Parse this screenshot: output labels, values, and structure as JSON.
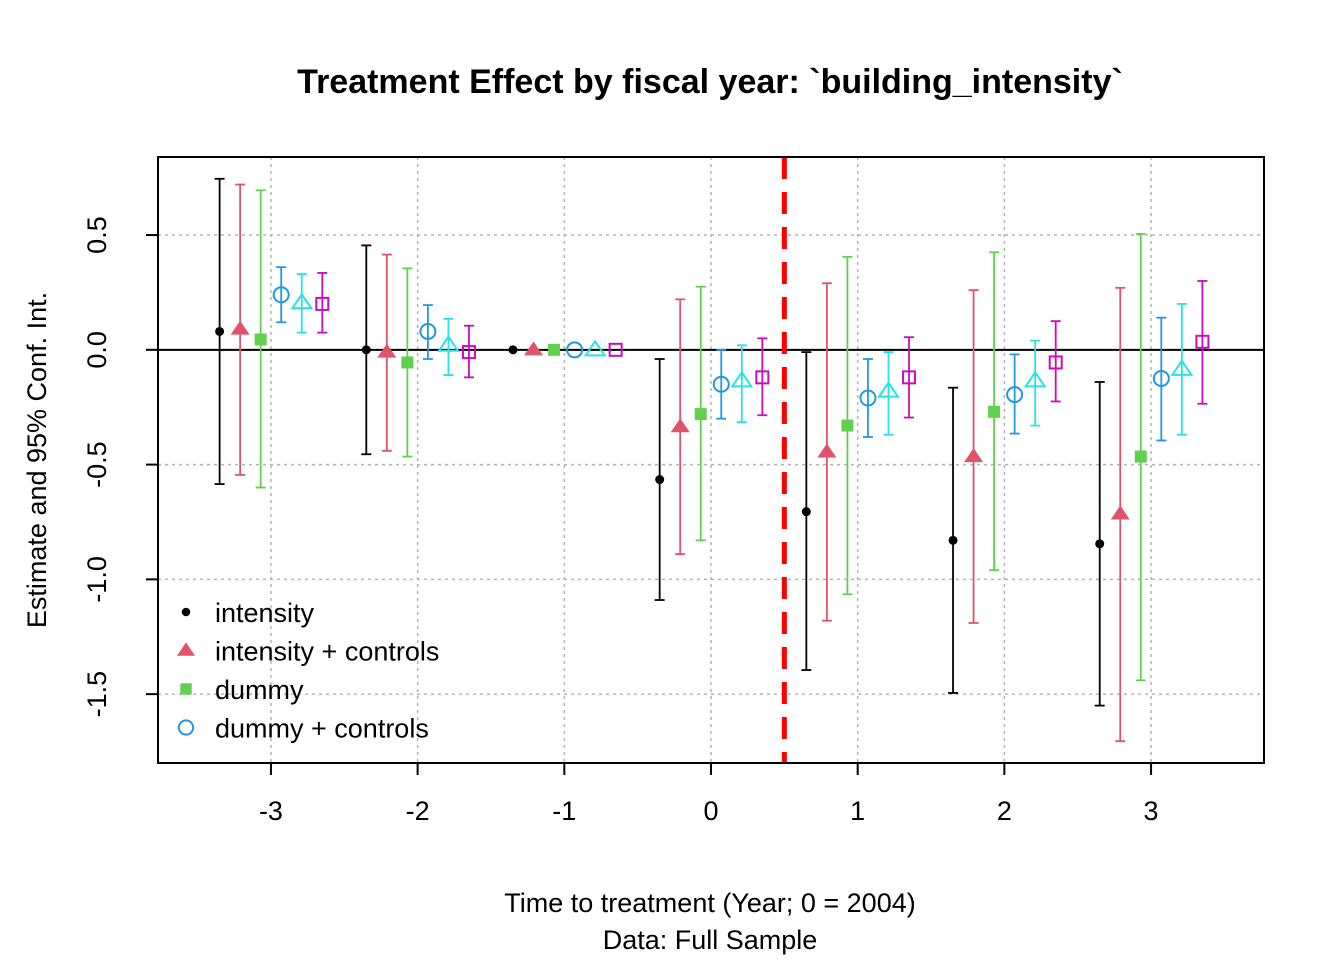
{
  "chart_data": {
    "type": "scatter",
    "subtype": "event-study coefficient plot with 95% confidence intervals",
    "title": "Treatment Effect by fiscal year: `building_intensity`",
    "xlabel": "Time to treatment (Year; 0 = 2004)",
    "xlabel_sub": "Data: Full Sample",
    "ylabel": "Estimate and 95% Conf. Int.",
    "xlim": [
      -3.77,
      3.77
    ],
    "ylim": [
      -1.8,
      0.84
    ],
    "x_ticks": [
      -3,
      -2,
      -1,
      0,
      1,
      2,
      3
    ],
    "x_tick_labels": [
      "-3",
      "-2",
      "-1",
      "0",
      "1",
      "2",
      "3"
    ],
    "y_ticks": [
      -1.5,
      -1.0,
      -0.5,
      0.0,
      0.5
    ],
    "y_tick_labels": [
      "-1.5",
      "-1.0",
      "-0.5",
      "0.0",
      "0.5"
    ],
    "grid": true,
    "zero_line": 0,
    "treatment_line": {
      "x": 0.5,
      "color": "#ff0000",
      "style": "dashed"
    },
    "series": [
      {
        "name": "intensity",
        "color": "#000000",
        "marker": "filled-circle",
        "offset": -0.35,
        "x": [
          -3,
          -2,
          -1,
          0,
          1,
          2,
          3
        ],
        "estimate": [
          0.08,
          0.0,
          0.0,
          -0.565,
          -0.705,
          -0.83,
          -0.845
        ],
        "ci_low": [
          -0.585,
          -0.455,
          null,
          -1.09,
          -1.395,
          -1.495,
          -1.55
        ],
        "ci_high": [
          0.745,
          0.455,
          null,
          -0.04,
          -0.01,
          -0.165,
          -0.14
        ]
      },
      {
        "name": "intensity + controls",
        "color": "#df536b",
        "marker": "filled-triangle",
        "offset": -0.21,
        "x": [
          -3,
          -2,
          -1,
          0,
          1,
          2,
          3
        ],
        "estimate": [
          0.09,
          -0.01,
          0.0,
          -0.335,
          -0.445,
          -0.465,
          -0.715
        ],
        "ci_low": [
          -0.545,
          -0.44,
          null,
          -0.89,
          -1.18,
          -1.19,
          -1.705
        ],
        "ci_high": [
          0.72,
          0.415,
          null,
          0.22,
          0.29,
          0.26,
          0.27
        ]
      },
      {
        "name": "dummy",
        "color": "#61d04f",
        "marker": "filled-square",
        "offset": -0.07,
        "x": [
          -3,
          -2,
          -1,
          0,
          1,
          2,
          3
        ],
        "estimate": [
          0.045,
          -0.055,
          0.0,
          -0.28,
          -0.33,
          -0.27,
          -0.465
        ],
        "ci_low": [
          -0.6,
          -0.465,
          null,
          -0.83,
          -1.065,
          -0.96,
          -1.44
        ],
        "ci_high": [
          0.695,
          0.355,
          null,
          0.275,
          0.405,
          0.425,
          0.505
        ]
      },
      {
        "name": "dummy + controls",
        "color": "#2297e6",
        "marker": "open-circle",
        "offset": 0.07,
        "x": [
          -3,
          -2,
          -1,
          0,
          1,
          2,
          3
        ],
        "estimate": [
          0.24,
          0.08,
          0.0,
          -0.15,
          -0.21,
          -0.195,
          -0.125
        ],
        "ci_low": [
          0.12,
          -0.04,
          null,
          -0.3,
          -0.38,
          -0.365,
          -0.395
        ],
        "ci_high": [
          0.36,
          0.195,
          null,
          0.0,
          -0.04,
          -0.02,
          0.14
        ]
      },
      {
        "name": "",
        "color": "#28e2e5",
        "marker": "open-triangle",
        "offset": 0.21,
        "x": [
          -3,
          -2,
          -1,
          0,
          1,
          2,
          3
        ],
        "estimate": [
          0.205,
          0.02,
          0.0,
          -0.135,
          -0.18,
          -0.135,
          -0.085
        ],
        "ci_low": [
          0.075,
          -0.11,
          null,
          -0.315,
          -0.37,
          -0.33,
          -0.37
        ],
        "ci_high": [
          0.33,
          0.135,
          null,
          0.02,
          -0.01,
          0.04,
          0.2
        ]
      },
      {
        "name": "",
        "color": "#cd0bbc",
        "marker": "open-square",
        "offset": 0.35,
        "x": [
          -3,
          -2,
          -1,
          0,
          1,
          2,
          3
        ],
        "estimate": [
          0.2,
          -0.01,
          0.0,
          -0.12,
          -0.12,
          -0.055,
          0.035
        ],
        "ci_low": [
          0.075,
          -0.12,
          null,
          -0.285,
          -0.295,
          -0.225,
          -0.235
        ],
        "ci_high": [
          0.335,
          0.105,
          null,
          0.05,
          0.055,
          0.125,
          0.3
        ]
      }
    ],
    "legend": {
      "position": "bottom-left",
      "entries": [
        {
          "label": "intensity",
          "color": "#000000",
          "marker": "filled-circle"
        },
        {
          "label": "intensity + controls",
          "color": "#df536b",
          "marker": "filled-triangle"
        },
        {
          "label": "dummy",
          "color": "#61d04f",
          "marker": "filled-square"
        },
        {
          "label": "dummy + controls",
          "color": "#2297e6",
          "marker": "open-circle"
        }
      ]
    }
  }
}
